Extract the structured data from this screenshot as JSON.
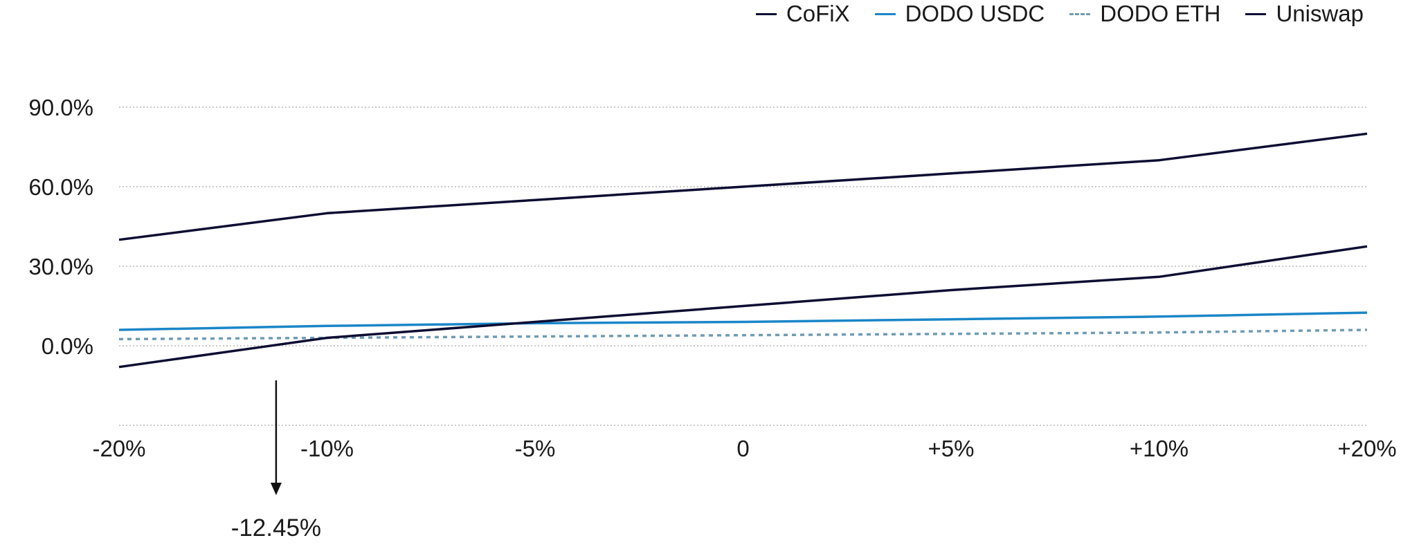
{
  "chart_data": {
    "type": "line",
    "categories": [
      "-20%",
      "-10%",
      "-5%",
      "0",
      "+5%",
      "+10%",
      "+20%"
    ],
    "y_ticks": [
      "0.0%",
      "30.0%",
      "60.0%",
      "90.0%"
    ],
    "y_tick_values": [
      0,
      30,
      60,
      90
    ],
    "ylim": [
      -30,
      90
    ],
    "grid": true,
    "legend_position": "top-right",
    "series": [
      {
        "name": "CoFiX",
        "values": [
          40,
          50,
          55,
          60,
          65,
          70,
          80
        ],
        "color": "#0d0d33",
        "dash": "solid"
      },
      {
        "name": "DODO USDC",
        "values": [
          6,
          7.5,
          8.5,
          9,
          10,
          11,
          12.5
        ],
        "color": "#1a86c8",
        "dash": "solid"
      },
      {
        "name": "DODO ETH",
        "values": [
          2.5,
          3,
          3.5,
          4,
          4.5,
          5,
          6
        ],
        "color": "#6f9bb3",
        "dash": "dashed"
      },
      {
        "name": "Uniswap",
        "values": [
          -8,
          3,
          9,
          15,
          21,
          26,
          37.5
        ],
        "color": "#0d0d33",
        "dash": "solid"
      }
    ],
    "annotation": {
      "label": "-12.45%",
      "x_position": -12.45
    }
  }
}
